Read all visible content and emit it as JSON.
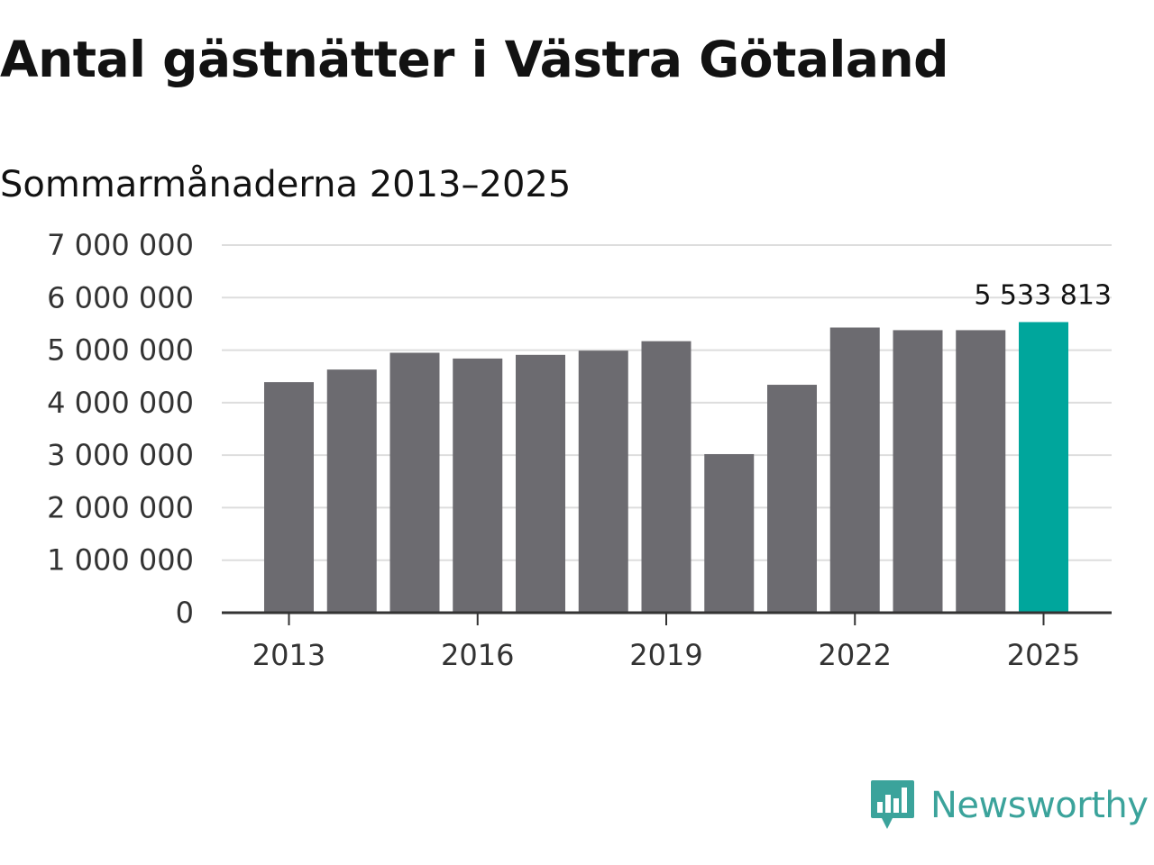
{
  "title": "Antal gästnätter i Västra Götaland",
  "subtitle": "Sommarmånaderna 2013–2025",
  "brand": {
    "name": "Newsworthy",
    "icon": "newsworthy-logo-icon",
    "color": "#3ba39b"
  },
  "chart_data": {
    "type": "bar",
    "categories": [
      "2013",
      "2014",
      "2015",
      "2016",
      "2017",
      "2018",
      "2019",
      "2020",
      "2021",
      "2022",
      "2023",
      "2024",
      "2025"
    ],
    "values": [
      4390000,
      4630000,
      4950000,
      4840000,
      4910000,
      4990000,
      5170000,
      3020000,
      4340000,
      5430000,
      5380000,
      5380000,
      5533813
    ],
    "x_tick_labels": [
      "2013",
      "2016",
      "2019",
      "2022",
      "2025"
    ],
    "y_tick_labels": [
      "0",
      "1 000 000",
      "2 000 000",
      "3 000 000",
      "4 000 000",
      "5 000 000",
      "6 000 000",
      "7 000 000"
    ],
    "ylim": [
      0,
      7000000
    ],
    "annotation": {
      "category": "2025",
      "text": "5 533 813"
    },
    "colors": {
      "bar": "#6c6b70",
      "highlight": "#00a69c",
      "grid": "#dddddd",
      "axis": "#333333"
    },
    "grid": true,
    "legend": "none"
  }
}
